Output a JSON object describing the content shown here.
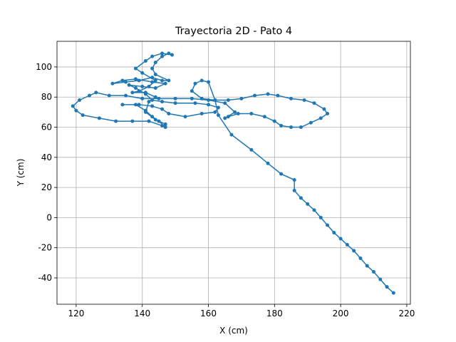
{
  "chart_data": {
    "type": "line",
    "title": "Trayectoria 2D - Pato 4",
    "x_label": "X (cm)",
    "y_label": "Y (cm)",
    "color": "#1f77b4",
    "grid": true,
    "markers": true,
    "xlim": [
      114.2,
      221.1
    ],
    "ylim": [
      -57.5,
      117
    ],
    "xticks": [
      120,
      140,
      160,
      180,
      200,
      220
    ],
    "yticks": [
      -40,
      -20,
      0,
      20,
      40,
      60,
      80,
      100
    ],
    "x": [
      216,
      214,
      212,
      210,
      208,
      206,
      204,
      202,
      200,
      198,
      196,
      194,
      192,
      190,
      188,
      186,
      186,
      182,
      178,
      173,
      167,
      163,
      162,
      160,
      158,
      156,
      155,
      158,
      162,
      166,
      170,
      174,
      178,
      181,
      185,
      189,
      192,
      195,
      196,
      194,
      191,
      188,
      185,
      182,
      180,
      177,
      173,
      169,
      166,
      165,
      168,
      165,
      160,
      155,
      150,
      145,
      140,
      135,
      130,
      126,
      124,
      121,
      119,
      120,
      122,
      127,
      132,
      137,
      142,
      146,
      147,
      145,
      143,
      141,
      138,
      134,
      139,
      143,
      146,
      148,
      153,
      158,
      162,
      163,
      160,
      156,
      150,
      146,
      143,
      141,
      138,
      136,
      140,
      144,
      147,
      143,
      138,
      134,
      131,
      135,
      139,
      143,
      146,
      148,
      144,
      143,
      144,
      146,
      148,
      149,
      146,
      143,
      141,
      138,
      140,
      144,
      142,
      139,
      137,
      141,
      144,
      142,
      141,
      144,
      147
    ],
    "values": [
      -50,
      -46,
      -41,
      -36,
      -32,
      -27,
      -22,
      -18,
      -14,
      -10,
      -5,
      0,
      5,
      9,
      13,
      18,
      25,
      29,
      36,
      45,
      55,
      68,
      78,
      90,
      91,
      89,
      84,
      79,
      78,
      78,
      79,
      81,
      82,
      81,
      79,
      78,
      76,
      72,
      69,
      66,
      63,
      60,
      60,
      61,
      64,
      67,
      69,
      69,
      67,
      66,
      70,
      76,
      78,
      79,
      79,
      79,
      79,
      81,
      81,
      83,
      81,
      78,
      74,
      71,
      68,
      66,
      64,
      64,
      64,
      61,
      60,
      64,
      67,
      71,
      75,
      75,
      75,
      74,
      72,
      69,
      67,
      69,
      70,
      73,
      75,
      76,
      76,
      77,
      78,
      82,
      86,
      88,
      87,
      86,
      89,
      90,
      92,
      91,
      89,
      90,
      91,
      93,
      91,
      91,
      95,
      99,
      103,
      107,
      109,
      108,
      109,
      107,
      104,
      99,
      96,
      91,
      87,
      84,
      83,
      83,
      80,
      77,
      70,
      65,
      62
    ]
  }
}
